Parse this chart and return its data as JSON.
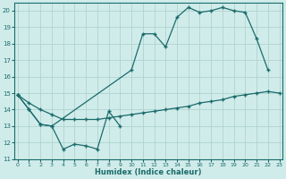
{
  "bg_color": "#d0ecea",
  "grid_color": "#afd4d0",
  "line_color": "#1a6b6b",
  "xlabel": "Humidex (Indice chaleur)",
  "xlim": [
    -0.3,
    23.3
  ],
  "ylim": [
    11,
    20.5
  ],
  "yticks": [
    11,
    12,
    13,
    14,
    15,
    16,
    17,
    18,
    19,
    20
  ],
  "xticks": [
    0,
    1,
    2,
    3,
    4,
    5,
    6,
    7,
    8,
    9,
    10,
    11,
    12,
    13,
    14,
    15,
    16,
    17,
    18,
    19,
    20,
    21,
    22,
    23
  ],
  "line1_x": [
    0,
    1,
    2,
    3,
    4,
    5,
    6,
    7,
    8,
    9
  ],
  "line1_y": [
    14.9,
    14.0,
    13.1,
    13.0,
    11.6,
    11.9,
    11.8,
    11.6,
    13.9,
    13.0
  ],
  "line2_x": [
    0,
    1,
    2,
    3,
    4,
    5,
    6,
    7,
    8,
    9,
    10,
    11,
    12,
    13,
    14,
    15,
    16,
    17,
    18,
    19,
    20,
    21,
    22,
    23
  ],
  "line2_y": [
    14.9,
    14.4,
    14.0,
    13.7,
    13.4,
    13.4,
    13.4,
    13.4,
    13.5,
    13.6,
    13.7,
    13.8,
    13.9,
    14.0,
    14.1,
    14.2,
    14.4,
    14.5,
    14.6,
    14.8,
    14.9,
    15.0,
    15.1,
    15.0
  ],
  "line3_x": [
    0,
    1,
    2,
    3,
    10,
    11,
    12,
    13,
    14,
    15,
    16,
    17,
    18,
    19,
    20,
    21,
    22
  ],
  "line3_y": [
    14.9,
    14.0,
    13.1,
    13.0,
    16.4,
    18.6,
    18.6,
    17.8,
    19.6,
    20.2,
    19.9,
    20.0,
    20.2,
    20.0,
    19.9,
    18.3,
    16.4
  ]
}
